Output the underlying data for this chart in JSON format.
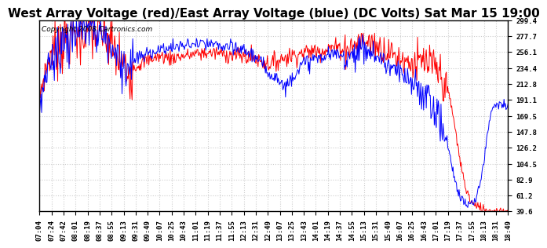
{
  "title": "West Array Voltage (red)/East Array Voltage (blue) (DC Volts) Sat Mar 15 19:00",
  "copyright_text": "Copyright 2008 Cartronics.com",
  "yticks": [
    39.6,
    61.2,
    82.9,
    104.5,
    126.2,
    147.8,
    169.5,
    191.1,
    212.8,
    234.4,
    256.1,
    277.7,
    299.4
  ],
  "xtick_labels": [
    "07:04",
    "07:24",
    "07:42",
    "08:01",
    "08:19",
    "08:37",
    "08:55",
    "09:13",
    "09:31",
    "09:49",
    "10:07",
    "10:25",
    "10:43",
    "11:01",
    "11:19",
    "11:37",
    "11:55",
    "12:13",
    "12:31",
    "12:49",
    "13:07",
    "13:25",
    "13:43",
    "14:01",
    "14:19",
    "14:37",
    "14:55",
    "15:13",
    "15:31",
    "15:49",
    "16:07",
    "16:25",
    "16:43",
    "17:01",
    "17:19",
    "17:37",
    "17:55",
    "18:13",
    "18:31",
    "18:49"
  ],
  "red_color": "#FF0000",
  "blue_color": "#0000FF",
  "bg_color": "#FFFFFF",
  "plot_bg_color": "#FFFFFF",
  "grid_color": "#CCCCCC",
  "title_fontsize": 11,
  "tick_fontsize": 6.5,
  "copyright_fontsize": 6.5,
  "ymin": 39.6,
  "ymax": 299.4
}
